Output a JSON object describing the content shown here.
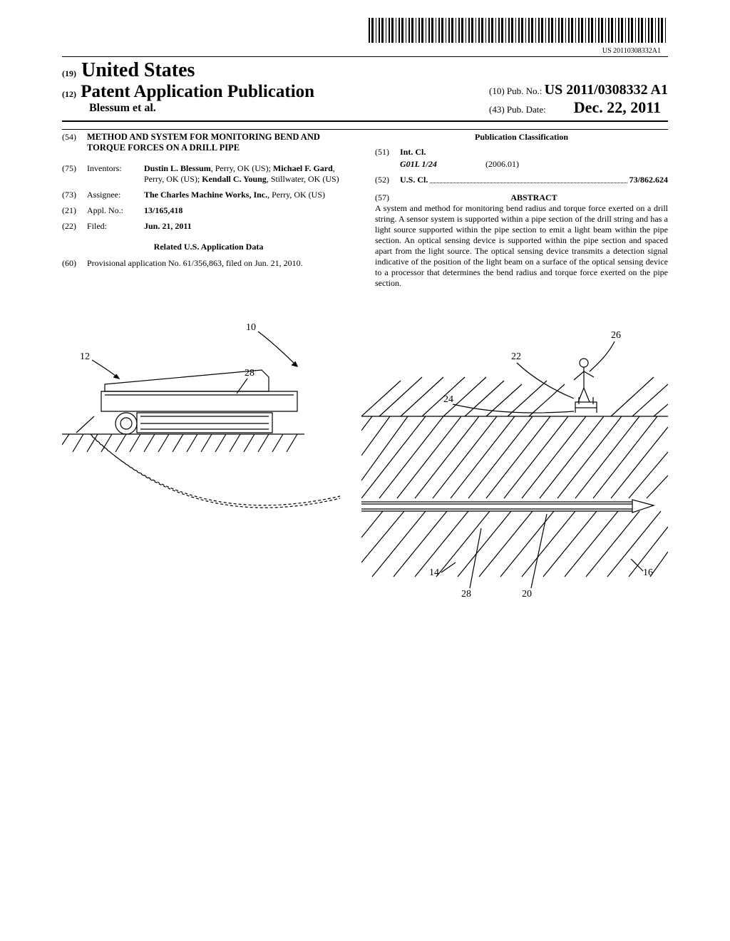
{
  "barcode_number": "US 20110308332A1",
  "header": {
    "n19": "(19)",
    "country": "United States",
    "n12": "(12)",
    "pub_type": "Patent Application Publication",
    "authors_line": "Blessum et al.",
    "n10": "(10)",
    "pubno_label": "Pub. No.:",
    "pubno": "US 2011/0308332 A1",
    "n43": "(43)",
    "pubdate_label": "Pub. Date:",
    "pubdate": "Dec. 22, 2011"
  },
  "left_col": {
    "n54": "(54)",
    "title": "METHOD AND SYSTEM FOR MONITORING BEND AND TORQUE FORCES ON A DRILL PIPE",
    "n75": "(75)",
    "inventors_label": "Inventors:",
    "inventors_val": "<b>Dustin L. Blessum</b>, Perry, OK (US); <b>Michael F. Gard</b>, Perry, OK (US); <b>Kendall C. Young</b>, Stillwater, OK (US)",
    "n73": "(73)",
    "assignee_label": "Assignee:",
    "assignee_val": "<b>The Charles Machine Works, Inc.</b>, Perry, OK (US)",
    "n21": "(21)",
    "applno_label": "Appl. No.:",
    "applno_val": "13/165,418",
    "n22": "(22)",
    "filed_label": "Filed:",
    "filed_val": "Jun. 21, 2011",
    "related_heading": "Related U.S. Application Data",
    "n60": "(60)",
    "provisional": "Provisional application No. 61/356,863, filed on Jun. 21, 2010."
  },
  "right_col": {
    "pub_class": "Publication Classification",
    "n51": "(51)",
    "intcl_label": "Int. Cl.",
    "intcl_code": "G01L 1/24",
    "intcl_date": "(2006.01)",
    "n52": "(52)",
    "uscl_label": "U.S. Cl.",
    "uscl_val": "73/862.624",
    "n57": "(57)",
    "abstract_h": "ABSTRACT",
    "abstract": "A system and method for monitoring bend radius and torque force exerted on a drill string. A sensor system is supported within a pipe section of the drill string and has a light source supported within the pipe section to emit a light beam within the pipe section. An optical sensing device is supported within the pipe section and spaced apart from the light source. The optical sensing device transmits a detection signal indicative of the position of the light beam on a surface of the optical sensing device to a processor that determines the bend radius and torque force exerted on the pipe section."
  },
  "figure_labels": {
    "l10": "10",
    "l12": "12",
    "l28a": "28",
    "l26": "26",
    "l22": "22",
    "l24": "24",
    "l14": "14",
    "l16": "16",
    "l20": "20",
    "l28b": "28"
  }
}
